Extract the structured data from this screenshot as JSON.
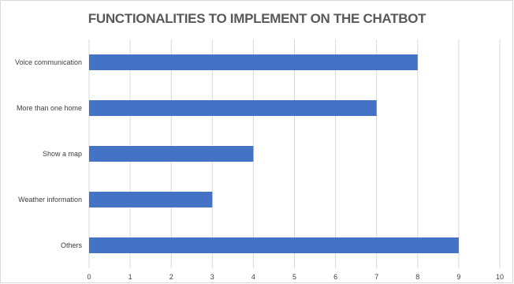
{
  "chart_data": {
    "type": "bar",
    "orientation": "horizontal",
    "title": "FUNCTIONALITIES TO IMPLEMENT ON THE CHATBOT",
    "categories": [
      "Voice communication",
      "More than one home",
      "Show a map",
      "Weather information",
      "Others"
    ],
    "values": [
      8,
      7,
      4,
      3,
      9
    ],
    "xlim": [
      0,
      10
    ],
    "xticks": [
      "0",
      "1",
      "2",
      "3",
      "4",
      "5",
      "6",
      "7",
      "8",
      "9",
      "10"
    ],
    "grid": true,
    "legend": "none",
    "bar_color": "#4472c4",
    "grid_color": "#d9d9d9"
  }
}
